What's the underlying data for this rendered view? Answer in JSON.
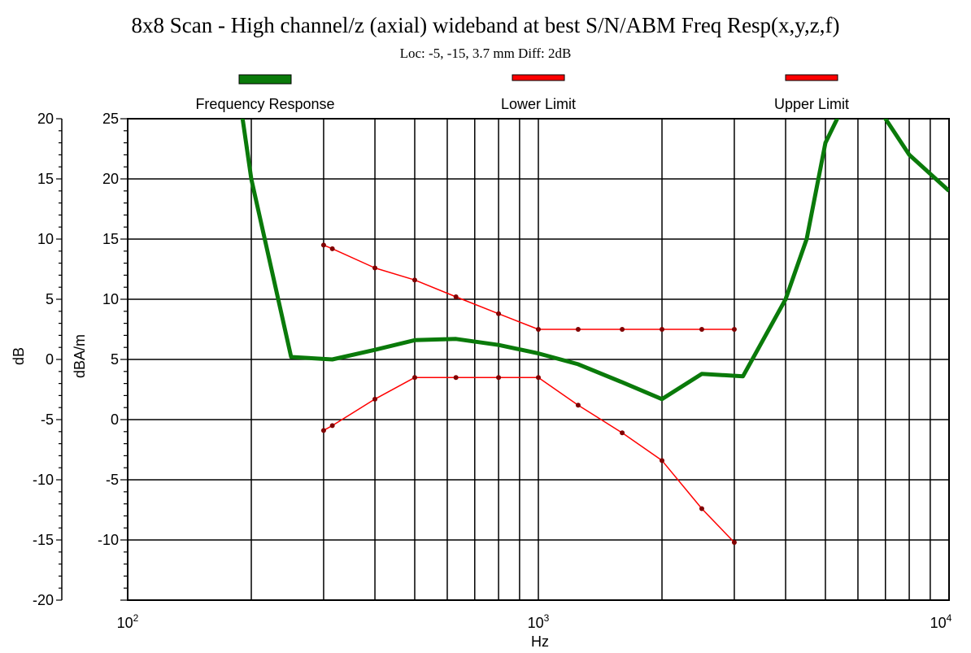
{
  "chart_data": {
    "type": "line",
    "title": "8x8 Scan - High channel/z (axial) wideband at best S/N/ABM Freq Resp(x,y,z,f)",
    "subtitle": "Loc: -5, -15, 3.7 mm Diff: 2dB",
    "xlabel": "Hz",
    "ylabel_left": "dB",
    "ylabel_right": "dBA/m",
    "x_scale": "log",
    "xlim": [
      100,
      10000
    ],
    "x_ticks": [
      {
        "value": 100,
        "base": "10",
        "exp": "2"
      },
      {
        "value": 1000,
        "base": "10",
        "exp": "3"
      },
      {
        "value": 10000,
        "base": "10",
        "exp": "4"
      }
    ],
    "ylim": [
      -20,
      20
    ],
    "y_ticks": [
      "20",
      "15",
      "10",
      "5",
      "0",
      "-5",
      "-10",
      "-15",
      "-20"
    ],
    "y2lim": [
      -15,
      25
    ],
    "y2_ticks": [
      "25",
      "20",
      "15",
      "10",
      "5",
      "0",
      "-5",
      "-10"
    ],
    "grid": true,
    "legend_position": "top",
    "series": [
      {
        "name": "Frequency Response",
        "color": "#0a7a0a",
        "axis": "right",
        "markers": false,
        "points": [
          [
            185,
            28
          ],
          [
            200,
            20
          ],
          [
            250,
            5.2
          ],
          [
            315,
            5
          ],
          [
            400,
            5.8
          ],
          [
            500,
            6.6
          ],
          [
            630,
            6.7
          ],
          [
            800,
            6.2
          ],
          [
            1000,
            5.5
          ],
          [
            1250,
            4.6
          ],
          [
            1600,
            3.1
          ],
          [
            2000,
            1.7
          ],
          [
            2500,
            3.8
          ],
          [
            3150,
            3.6
          ],
          [
            4000,
            10
          ],
          [
            4500,
            15
          ],
          [
            5000,
            23
          ],
          [
            6300,
            30
          ],
          [
            7000,
            25
          ],
          [
            8000,
            22
          ],
          [
            10000,
            19
          ]
        ]
      },
      {
        "name": "Lower Limit",
        "color": "#ff0000",
        "axis": "right",
        "markers": true,
        "points": [
          [
            300,
            -0.9
          ],
          [
            315,
            -0.5
          ],
          [
            400,
            1.7
          ],
          [
            500,
            3.5
          ],
          [
            630,
            3.5
          ],
          [
            800,
            3.5
          ],
          [
            1000,
            3.5
          ],
          [
            1250,
            1.2
          ],
          [
            1600,
            -1.1
          ],
          [
            2000,
            -3.4
          ],
          [
            2500,
            -7.4
          ],
          [
            3000,
            -10.2
          ]
        ]
      },
      {
        "name": "Upper Limit",
        "color": "#ff0000",
        "axis": "right",
        "markers": true,
        "points": [
          [
            300,
            14.5
          ],
          [
            315,
            14.2
          ],
          [
            400,
            12.6
          ],
          [
            500,
            11.6
          ],
          [
            630,
            10.2
          ],
          [
            800,
            8.8
          ],
          [
            1000,
            7.5
          ],
          [
            1250,
            7.5
          ],
          [
            1600,
            7.5
          ],
          [
            2000,
            7.5
          ],
          [
            2500,
            7.5
          ],
          [
            3000,
            7.5
          ]
        ]
      }
    ]
  }
}
